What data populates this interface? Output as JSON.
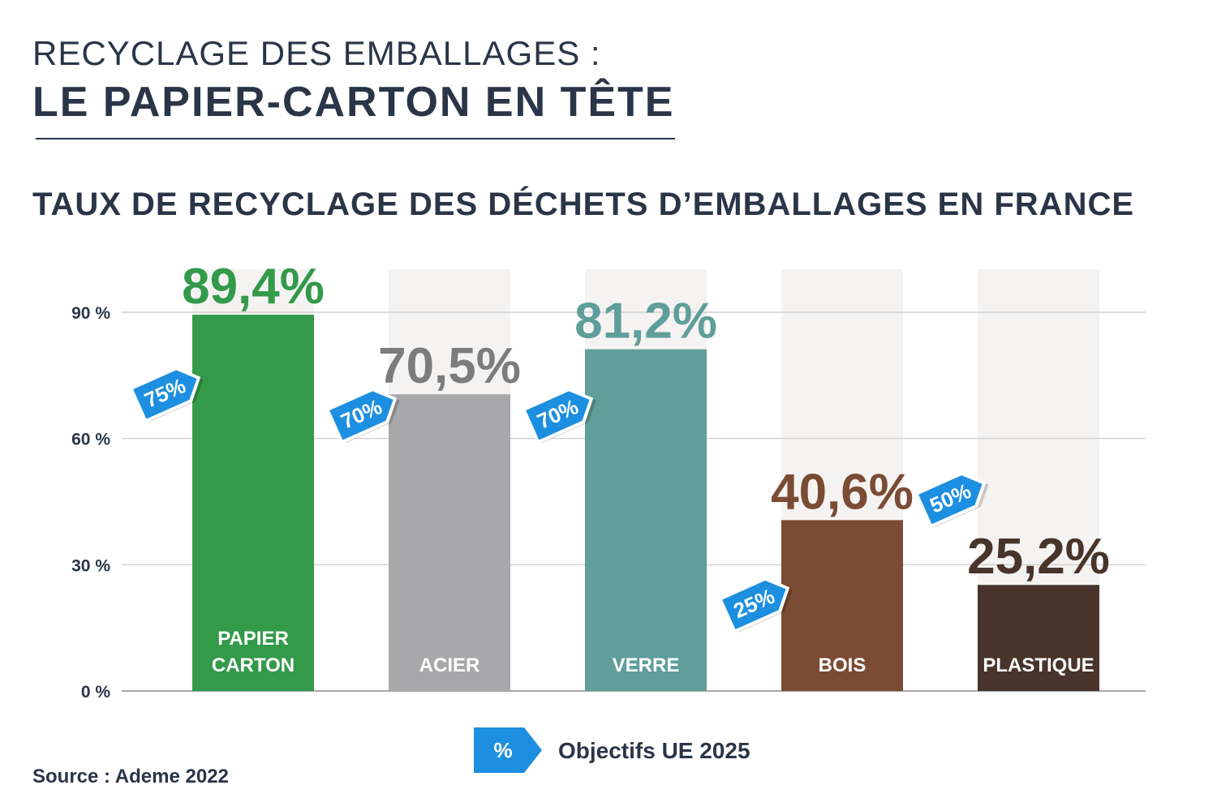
{
  "header": {
    "line1": "RECYCLAGE DES EMBALLAGES :",
    "line2": "LE PAPIER-CARTON EN TÊTE"
  },
  "chart_data": {
    "type": "bar",
    "title": "TAUX DE RECYCLAGE DES DÉCHETS  D’EMBALLAGES EN FRANCE",
    "categories": [
      "PAPIER CARTON",
      "ACIER",
      "VERRE",
      "BOIS",
      "PLASTIQUE"
    ],
    "values": [
      89.4,
      70.5,
      81.2,
      40.6,
      25.2
    ],
    "value_labels": [
      "89,4%",
      "70,5%",
      "81,2%",
      "40,6%",
      "25,2%"
    ],
    "targets": [
      75,
      70,
      70,
      25,
      50
    ],
    "target_labels": [
      "75%",
      "70%",
      "70%",
      "25%",
      "50%"
    ],
    "colors": [
      "#339a4a",
      "#a8a7aa",
      "#5f9e9a",
      "#7b4b33",
      "#48342a"
    ],
    "label_colors": [
      "#339a4a",
      "#7c7c7e",
      "#5f9e9a",
      "#7b4b33",
      "#48342a"
    ],
    "target_color": "#1d8fe1",
    "yticks": [
      0,
      30,
      60,
      90
    ],
    "ytick_labels": [
      "0 %",
      "30 %",
      "60 %",
      "90 %"
    ],
    "ylim": [
      0,
      90
    ],
    "grid": true
  },
  "legend": {
    "symbol": "%",
    "label": "Objectifs UE 2025"
  },
  "source": "Source : Ademe 2022"
}
